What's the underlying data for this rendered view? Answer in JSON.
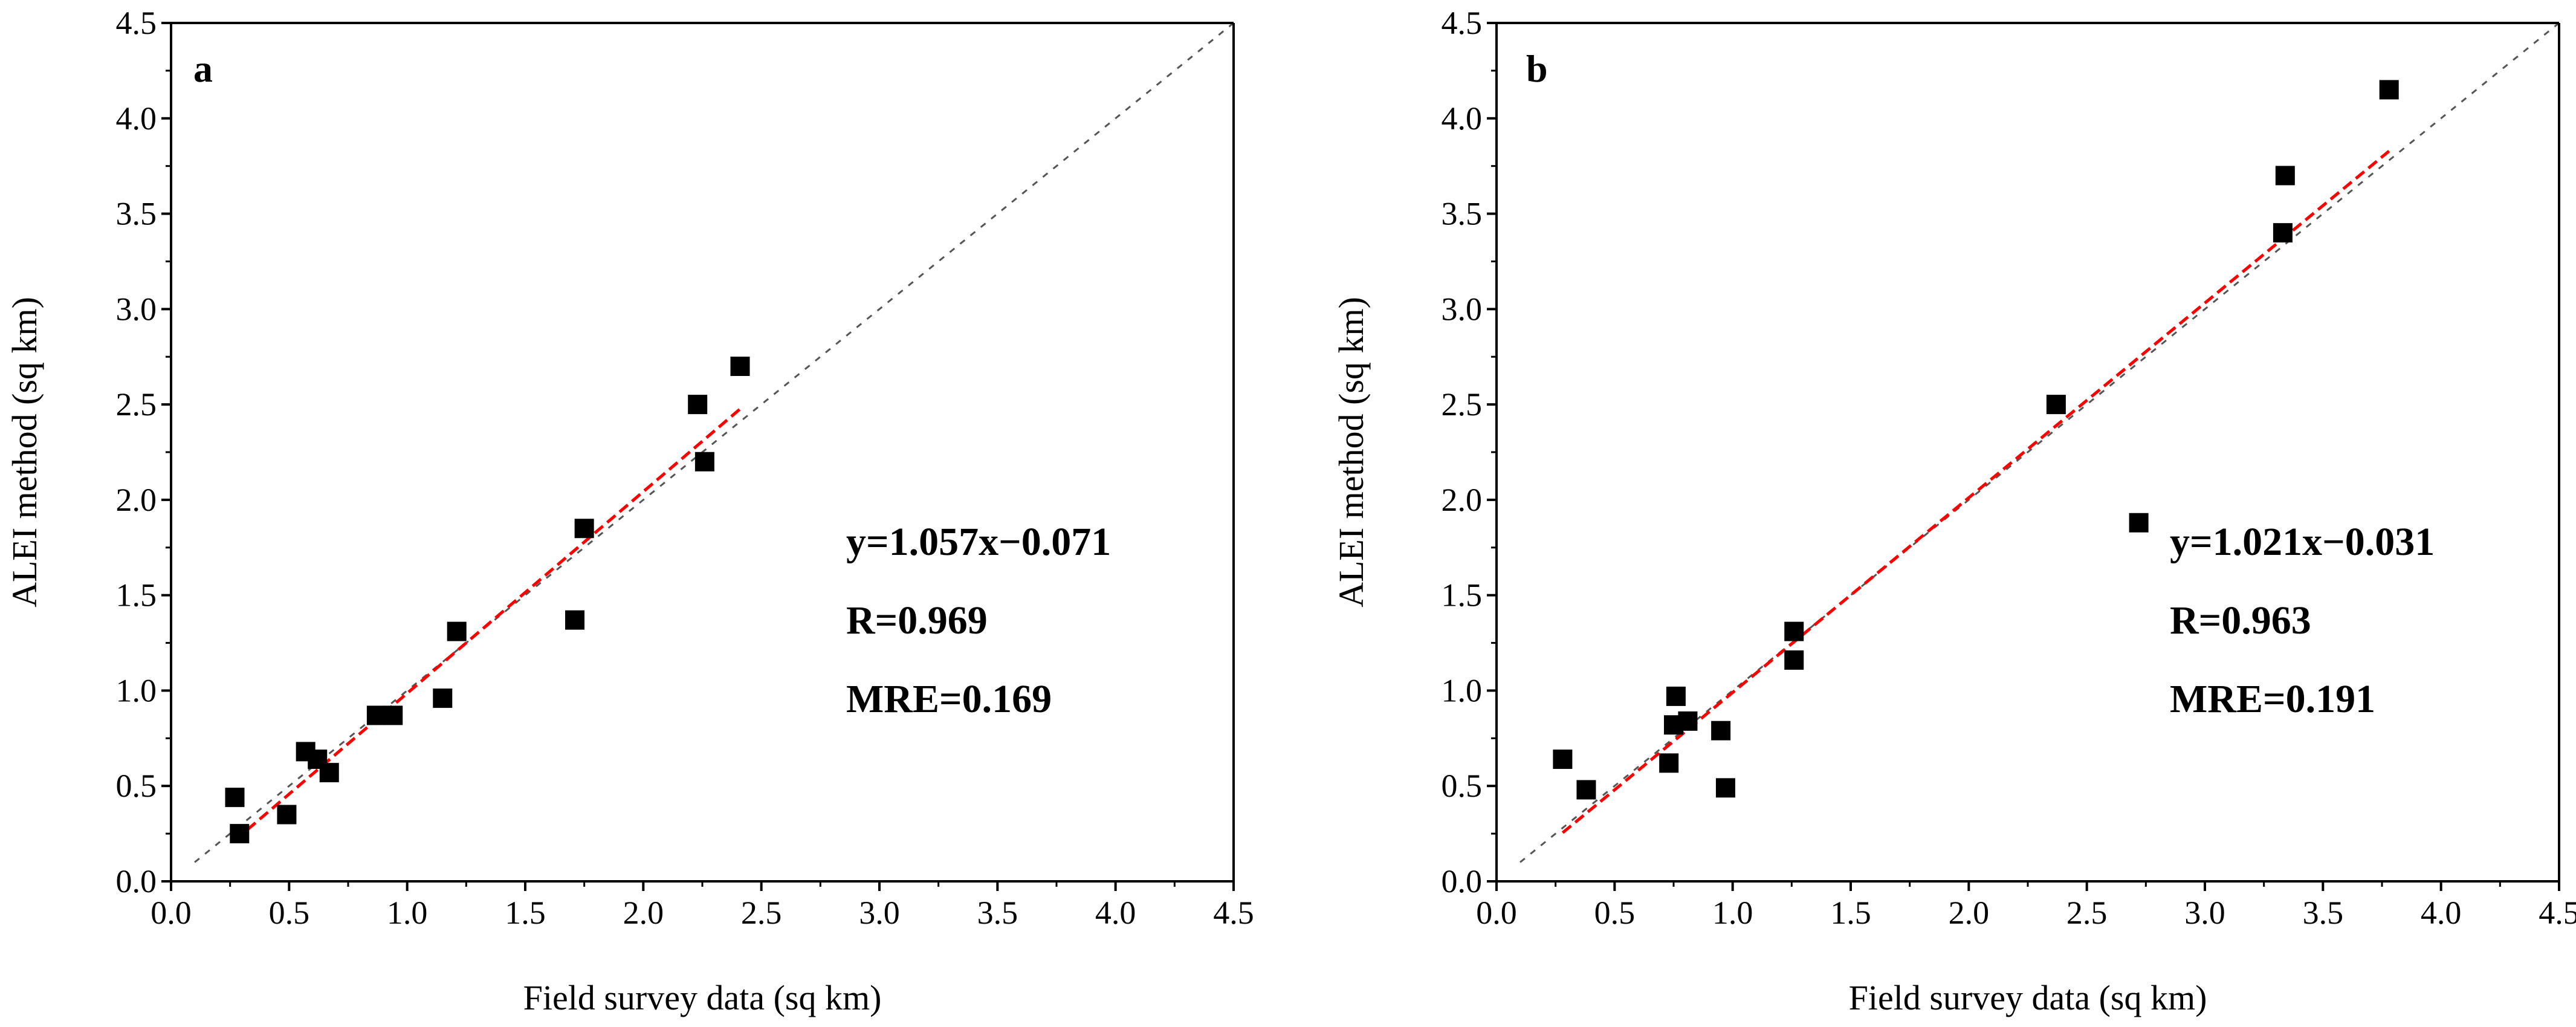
{
  "chart_data": [
    {
      "panel": "a",
      "type": "scatter",
      "panel_label": "a",
      "xlabel": "Field survey data (sq km)",
      "ylabel": "ALEI method (sq km)",
      "xlim": [
        0.0,
        4.5
      ],
      "ylim": [
        0.0,
        4.5
      ],
      "xticks": [
        "0.0",
        "0.5",
        "1.0",
        "1.5",
        "2.0",
        "2.5",
        "3.0",
        "3.5",
        "4.0",
        "4.5"
      ],
      "yticks": [
        "0.0",
        "0.5",
        "1.0",
        "1.5",
        "2.0",
        "2.5",
        "3.0",
        "3.5",
        "4.0",
        "4.5"
      ],
      "points": [
        {
          "x": 0.27,
          "y": 0.44
        },
        {
          "x": 0.29,
          "y": 0.25
        },
        {
          "x": 0.49,
          "y": 0.35
        },
        {
          "x": 0.57,
          "y": 0.68
        },
        {
          "x": 0.62,
          "y": 0.64
        },
        {
          "x": 0.67,
          "y": 0.57
        },
        {
          "x": 0.87,
          "y": 0.87
        },
        {
          "x": 0.94,
          "y": 0.87
        },
        {
          "x": 1.15,
          "y": 0.96
        },
        {
          "x": 1.21,
          "y": 1.31
        },
        {
          "x": 1.71,
          "y": 1.37
        },
        {
          "x": 1.75,
          "y": 1.85
        },
        {
          "x": 2.23,
          "y": 2.5
        },
        {
          "x": 2.26,
          "y": 2.2
        },
        {
          "x": 2.41,
          "y": 2.7
        }
      ],
      "fit": {
        "slope": 1.057,
        "intercept": -0.071,
        "x_range": [
          0.27,
          2.41
        ]
      },
      "identity_range": [
        0.1,
        4.5
      ],
      "equation": "y=1.057x−0.071",
      "r_text": "R=0.969",
      "mre_text": "MRE=0.169"
    },
    {
      "panel": "b",
      "type": "scatter",
      "panel_label": "b",
      "xlabel": "Field survey data (sq km)",
      "ylabel": "ALEI method (sq km)",
      "xlim": [
        0.0,
        4.5
      ],
      "ylim": [
        0.0,
        4.5
      ],
      "xticks": [
        "0.0",
        "0.5",
        "1.0",
        "1.5",
        "2.0",
        "2.5",
        "3.0",
        "3.5",
        "4.0",
        "4.5"
      ],
      "yticks": [
        "0.0",
        "0.5",
        "1.0",
        "1.5",
        "2.0",
        "2.5",
        "3.0",
        "3.5",
        "4.0",
        "4.5"
      ],
      "points": [
        {
          "x": 0.28,
          "y": 0.64
        },
        {
          "x": 0.38,
          "y": 0.48
        },
        {
          "x": 0.73,
          "y": 0.62
        },
        {
          "x": 0.75,
          "y": 0.82
        },
        {
          "x": 0.76,
          "y": 0.97
        },
        {
          "x": 0.81,
          "y": 0.84
        },
        {
          "x": 0.95,
          "y": 0.79
        },
        {
          "x": 0.97,
          "y": 0.49
        },
        {
          "x": 1.26,
          "y": 1.16
        },
        {
          "x": 1.26,
          "y": 1.31
        },
        {
          "x": 2.37,
          "y": 2.5
        },
        {
          "x": 2.72,
          "y": 1.88
        },
        {
          "x": 3.33,
          "y": 3.4
        },
        {
          "x": 3.34,
          "y": 3.7
        },
        {
          "x": 3.78,
          "y": 4.15
        }
      ],
      "fit": {
        "slope": 1.021,
        "intercept": -0.031,
        "x_range": [
          0.28,
          3.78
        ]
      },
      "identity_range": [
        0.1,
        4.5
      ],
      "equation": "y=1.021x−0.031",
      "r_text": "R=0.963",
      "mre_text": "MRE=0.191"
    }
  ],
  "colors": {
    "axis": "#000000",
    "marker": "#000000",
    "fit_line": "#ff0000",
    "identity_line": "#555555"
  }
}
